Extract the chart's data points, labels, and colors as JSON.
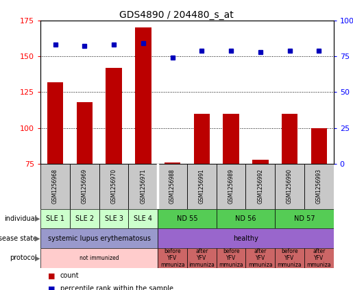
{
  "title": "GDS4890 / 204480_s_at",
  "samples": [
    "GSM1256968",
    "GSM1256969",
    "GSM1256970",
    "GSM1256971",
    "GSM1256988",
    "GSM1256991",
    "GSM1256989",
    "GSM1256992",
    "GSM1256990",
    "GSM1256993"
  ],
  "counts": [
    132,
    118,
    142,
    170,
    76,
    110,
    110,
    78,
    110,
    100
  ],
  "percentiles": [
    83,
    82,
    83,
    84,
    74,
    79,
    79,
    78,
    79,
    79
  ],
  "ylim_left": [
    75,
    175
  ],
  "ylim_right": [
    0,
    100
  ],
  "yticks_left": [
    75,
    100,
    125,
    150,
    175
  ],
  "yticks_right": [
    0,
    25,
    50,
    75,
    100
  ],
  "bar_color": "#bb0000",
  "dot_color": "#0000bb",
  "grid_color": "#000000",
  "individual_cells": [
    {
      "text": "SLE 1",
      "color": "#ccffcc",
      "col": 0,
      "span": 1
    },
    {
      "text": "SLE 2",
      "color": "#ccffcc",
      "col": 1,
      "span": 1
    },
    {
      "text": "SLE 3",
      "color": "#ccffcc",
      "col": 2,
      "span": 1
    },
    {
      "text": "SLE 4",
      "color": "#ccffcc",
      "col": 3,
      "span": 1
    },
    {
      "text": "ND 55",
      "color": "#55cc55",
      "col": 4,
      "span": 2
    },
    {
      "text": "ND 56",
      "color": "#55cc55",
      "col": 6,
      "span": 2
    },
    {
      "text": "ND 57",
      "color": "#55cc55",
      "col": 8,
      "span": 2
    }
  ],
  "disease_cells": [
    {
      "text": "systemic lupus erythematosus",
      "color": "#9999cc",
      "col": 0,
      "span": 4
    },
    {
      "text": "healthy",
      "color": "#9966cc",
      "col": 4,
      "span": 6
    }
  ],
  "protocol_cells": [
    {
      "text": "not immunized",
      "color": "#ffcccc",
      "col": 0,
      "span": 4
    },
    {
      "text": "before\nYFV\nmmuniza",
      "color": "#cc6666",
      "col": 4,
      "span": 1
    },
    {
      "text": "after\nYFV\nimmuniza",
      "color": "#cc6666",
      "col": 5,
      "span": 1
    },
    {
      "text": "before\nYFV\nmmuniza",
      "color": "#cc6666",
      "col": 6,
      "span": 1
    },
    {
      "text": "after\nYFV\nmmuniza",
      "color": "#cc6666",
      "col": 7,
      "span": 1
    },
    {
      "text": "before\nYFV\nmmuniza",
      "color": "#cc6666",
      "col": 8,
      "span": 1
    },
    {
      "text": "after\nYFV\nmmuniza",
      "color": "#cc6666",
      "col": 9,
      "span": 1
    }
  ],
  "row_labels": [
    "individual",
    "disease state",
    "protocol"
  ],
  "legend_items": [
    {
      "marker": "s",
      "color": "#bb0000",
      "label": "count"
    },
    {
      "marker": "s",
      "color": "#0000bb",
      "label": "percentile rank within the sample"
    }
  ],
  "bg_color": "#ffffff",
  "sample_bg_color": "#c8c8c8"
}
